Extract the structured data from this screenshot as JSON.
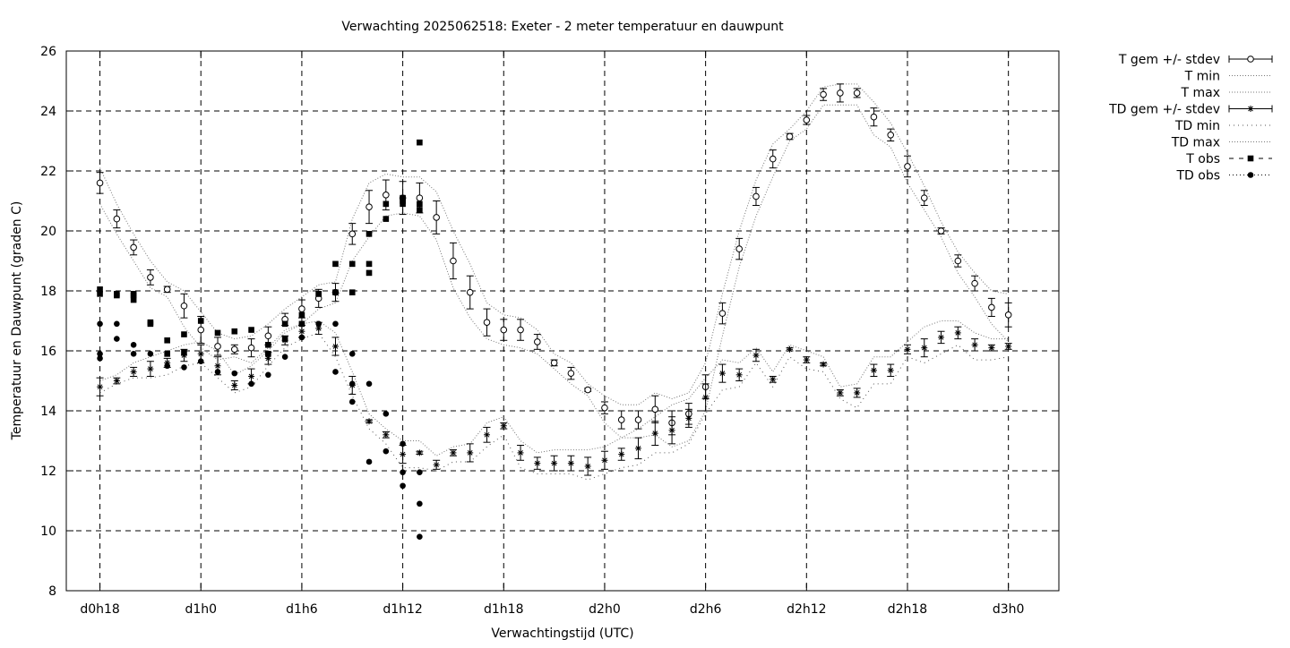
{
  "chart_data": {
    "type": "line",
    "title": "Verwachting 2025062518: Exeter - 2 meter temperatuur en dauwpunt",
    "xlabel": "Verwachtingstijd (UTC)",
    "ylabel": "Temperatuur en Dauwpunt (graden C)",
    "x_unit": "hours since d0h18",
    "xlim": [
      -2,
      57
    ],
    "ylim": [
      8,
      26
    ],
    "yticks": [
      8,
      10,
      12,
      14,
      16,
      18,
      20,
      22,
      24,
      26
    ],
    "xticks": [
      {
        "x": 0,
        "label": "d0h18"
      },
      {
        "x": 6,
        "label": "d1h0"
      },
      {
        "x": 12,
        "label": "d1h6"
      },
      {
        "x": 18,
        "label": "d1h12"
      },
      {
        "x": 24,
        "label": "d1h18"
      },
      {
        "x": 30,
        "label": "d2h0"
      },
      {
        "x": 36,
        "label": "d2h6"
      },
      {
        "x": 42,
        "label": "d2h12"
      },
      {
        "x": 48,
        "label": "d2h18"
      },
      {
        "x": 54,
        "label": "d3h0"
      }
    ],
    "grid": true,
    "legend_position": "outside-top-right",
    "legend": [
      {
        "label": "T gem +/- stdev",
        "style": "errorbar-circle"
      },
      {
        "label": "T min",
        "style": "dotted"
      },
      {
        "label": "T max",
        "style": "dotted"
      },
      {
        "label": "TD gem +/- stdev",
        "style": "errorbar-star"
      },
      {
        "label": "TD min",
        "style": "dotted-sparse"
      },
      {
        "label": "TD max",
        "style": "dotted"
      },
      {
        "label": "T obs",
        "style": "dashed-square"
      },
      {
        "label": "TD obs",
        "style": "dotted-circle"
      }
    ],
    "t_mean": {
      "x": [
        0,
        1,
        2,
        3,
        4,
        5,
        6,
        7,
        8,
        9,
        10,
        11,
        12,
        13,
        14,
        15,
        16,
        17,
        18,
        19,
        20,
        21,
        22,
        23,
        24,
        25,
        26,
        27,
        28,
        29,
        30,
        31,
        32,
        33,
        34,
        35,
        36,
        37,
        38,
        39,
        40,
        41,
        42,
        43,
        44,
        45,
        46,
        47,
        48,
        49,
        50,
        51,
        52,
        53,
        54
      ],
      "y": [
        21.6,
        20.4,
        19.45,
        18.45,
        18.05,
        17.5,
        16.7,
        16.15,
        16.05,
        16.1,
        16.5,
        17.05,
        17.4,
        17.75,
        17.95,
        19.9,
        20.8,
        21.2,
        21.1,
        21.1,
        20.45,
        19.0,
        17.95,
        16.95,
        16.7,
        16.7,
        16.3,
        15.6,
        15.25,
        14.7,
        14.1,
        13.7,
        13.7,
        14.05,
        13.6,
        13.9,
        14.8,
        17.25,
        19.4,
        21.15,
        22.4,
        23.15,
        23.7,
        24.55,
        24.6,
        24.6,
        23.8,
        23.2,
        22.15,
        21.1,
        20.0,
        19.0,
        18.25,
        17.45,
        17.2
      ],
      "sd": [
        0.35,
        0.3,
        0.25,
        0.25,
        0.1,
        0.4,
        0.45,
        0.3,
        0.15,
        0.3,
        0.3,
        0.2,
        0.3,
        0.3,
        0.3,
        0.35,
        0.55,
        0.5,
        0.55,
        0.5,
        0.55,
        0.6,
        0.55,
        0.45,
        0.35,
        0.35,
        0.25,
        0.1,
        0.2,
        0.05,
        0.2,
        0.3,
        0.3,
        0.45,
        0.4,
        0.35,
        0.4,
        0.35,
        0.35,
        0.3,
        0.3,
        0.1,
        0.15,
        0.2,
        0.3,
        0.15,
        0.3,
        0.2,
        0.35,
        0.25,
        0.1,
        0.2,
        0.25,
        0.3,
        0.4
      ]
    },
    "t_min": {
      "x": [
        0,
        1,
        2,
        3,
        4,
        5,
        6,
        7,
        8,
        9,
        10,
        11,
        12,
        13,
        14,
        15,
        16,
        17,
        18,
        19,
        20,
        21,
        22,
        23,
        24,
        25,
        26,
        27,
        28,
        29,
        30,
        31,
        32,
        33,
        34,
        35,
        36,
        37,
        38,
        39,
        40,
        41,
        42,
        43,
        44,
        45,
        46,
        47,
        48,
        49,
        50,
        51,
        52,
        53,
        54
      ],
      "y": [
        20.9,
        19.9,
        19.0,
        18.1,
        17.8,
        16.8,
        16.1,
        15.7,
        15.8,
        15.6,
        16.1,
        16.7,
        16.9,
        17.4,
        17.6,
        19.0,
        19.8,
        20.5,
        20.6,
        20.5,
        19.7,
        18.1,
        17.1,
        16.4,
        16.2,
        16.1,
        15.9,
        15.4,
        14.9,
        14.5,
        13.6,
        13.1,
        13.1,
        13.2,
        12.8,
        13.0,
        14.0,
        16.5,
        18.8,
        20.5,
        21.8,
        23.0,
        23.4,
        24.2,
        24.2,
        24.2,
        23.2,
        22.8,
        21.6,
        20.7,
        19.8,
        18.6,
        17.8,
        16.9,
        16.3
      ]
    },
    "t_max": {
      "x": [
        0,
        1,
        2,
        3,
        4,
        5,
        6,
        7,
        8,
        9,
        10,
        11,
        12,
        13,
        14,
        15,
        16,
        17,
        18,
        19,
        20,
        21,
        22,
        23,
        24,
        25,
        26,
        27,
        28,
        29,
        30,
        31,
        32,
        33,
        34,
        35,
        36,
        37,
        38,
        39,
        40,
        41,
        42,
        43,
        44,
        45,
        46,
        47,
        48,
        49,
        50,
        51,
        52,
        53,
        54
      ],
      "y": [
        22.1,
        20.9,
        19.9,
        19.0,
        18.3,
        18.0,
        17.3,
        16.6,
        16.4,
        16.5,
        16.9,
        17.4,
        17.8,
        18.2,
        18.3,
        20.4,
        21.6,
        21.9,
        21.8,
        21.8,
        21.3,
        20.0,
        18.9,
        17.6,
        17.2,
        17.1,
        16.7,
        15.9,
        15.6,
        14.9,
        14.5,
        14.2,
        14.2,
        14.6,
        14.4,
        14.6,
        15.6,
        17.9,
        20.0,
        21.7,
        22.9,
        23.4,
        24.0,
        24.8,
        24.9,
        24.9,
        24.3,
        23.6,
        22.6,
        21.5,
        20.3,
        19.3,
        18.6,
        18.0,
        17.9
      ]
    },
    "td_mean": {
      "x": [
        0,
        1,
        2,
        3,
        4,
        5,
        6,
        7,
        8,
        9,
        10,
        11,
        12,
        13,
        14,
        15,
        16,
        17,
        18,
        19,
        20,
        21,
        22,
        23,
        24,
        25,
        26,
        27,
        28,
        29,
        30,
        31,
        32,
        33,
        34,
        35,
        36,
        37,
        38,
        39,
        40,
        41,
        42,
        43,
        44,
        45,
        46,
        47,
        48,
        49,
        50,
        51,
        52,
        53,
        54
      ],
      "y": [
        14.8,
        15.0,
        15.3,
        15.4,
        15.6,
        15.85,
        15.9,
        15.5,
        14.85,
        15.15,
        15.75,
        16.35,
        16.65,
        16.75,
        16.15,
        14.85,
        13.65,
        13.2,
        12.55,
        12.6,
        12.2,
        12.6,
        12.6,
        13.2,
        13.5,
        12.6,
        12.25,
        12.25,
        12.25,
        12.15,
        12.35,
        12.55,
        12.75,
        13.25,
        13.35,
        13.75,
        14.45,
        15.25,
        15.2,
        15.85,
        15.05,
        16.05,
        15.7,
        15.55,
        14.6,
        14.6,
        15.35,
        15.35,
        16.05,
        16.1,
        16.45,
        16.6,
        16.2,
        16.1,
        16.15
      ]
    },
    "td_min": {
      "x": [
        0,
        1,
        2,
        3,
        4,
        5,
        6,
        7,
        8,
        9,
        10,
        11,
        12,
        13,
        14,
        15,
        16,
        17,
        18,
        19,
        20,
        21,
        22,
        23,
        24,
        25,
        26,
        27,
        28,
        29,
        30,
        31,
        32,
        33,
        34,
        35,
        36,
        37,
        38,
        39,
        40,
        41,
        42,
        43,
        44,
        45,
        46,
        47,
        48,
        49,
        50,
        51,
        52,
        53,
        54
      ],
      "y": [
        14.6,
        14.9,
        15.1,
        15.1,
        15.2,
        15.5,
        15.6,
        15.1,
        14.6,
        14.8,
        15.5,
        16.1,
        16.4,
        16.6,
        15.8,
        14.5,
        13.4,
        12.9,
        12.1,
        12.1,
        12.0,
        12.3,
        12.3,
        12.8,
        13.2,
        12.1,
        11.9,
        11.9,
        11.9,
        11.7,
        11.9,
        12.1,
        12.2,
        12.6,
        12.6,
        12.9,
        13.9,
        14.7,
        14.8,
        15.6,
        14.8,
        15.8,
        15.4,
        15.3,
        14.4,
        14.1,
        14.9,
        14.9,
        15.8,
        15.6,
        15.9,
        16.2,
        15.7,
        15.7,
        15.8
      ]
    },
    "td_max": {
      "x": [
        0,
        1,
        2,
        3,
        4,
        5,
        6,
        7,
        8,
        9,
        10,
        11,
        12,
        13,
        14,
        15,
        16,
        17,
        18,
        19,
        20,
        21,
        22,
        23,
        24,
        25,
        26,
        27,
        28,
        29,
        30,
        31,
        32,
        33,
        34,
        35,
        36,
        37,
        38,
        39,
        40,
        41,
        42,
        43,
        44,
        45,
        46,
        47,
        48,
        49,
        50,
        51,
        52,
        53,
        54
      ],
      "y": [
        15.0,
        15.2,
        15.6,
        15.8,
        16.0,
        16.2,
        16.3,
        16.0,
        15.2,
        15.5,
        16.0,
        16.6,
        16.9,
        17.0,
        16.6,
        15.3,
        13.9,
        13.4,
        13.0,
        13.0,
        12.5,
        12.8,
        12.9,
        13.6,
        13.8,
        13.0,
        12.6,
        12.7,
        12.7,
        12.7,
        12.8,
        13.1,
        13.4,
        13.8,
        14.2,
        14.4,
        15.1,
        15.7,
        15.6,
        16.1,
        15.3,
        16.2,
        16.0,
        15.8,
        14.8,
        14.9,
        15.8,
        15.8,
        16.3,
        16.8,
        17.0,
        17.0,
        16.6,
        16.4,
        16.4
      ]
    },
    "td_sd": [
      0.3,
      0.1,
      0.15,
      0.25,
      0.15,
      0.2,
      0.3,
      0.3,
      0.15,
      0.25,
      0.2,
      0.15,
      0.2,
      0.2,
      0.3,
      0.3,
      0.05,
      0.1,
      0.3,
      0.05,
      0.15,
      0.1,
      0.3,
      0.25,
      0.1,
      0.25,
      0.2,
      0.25,
      0.25,
      0.3,
      0.3,
      0.2,
      0.35,
      0.4,
      0.45,
      0.3,
      0.45,
      0.3,
      0.2,
      0.2,
      0.1,
      0.05,
      0.1,
      0.05,
      0.1,
      0.15,
      0.2,
      0.2,
      0.15,
      0.3,
      0.2,
      0.2,
      0.2,
      0.1,
      0.1
    ],
    "t_obs": {
      "x": [
        0,
        0,
        1,
        1,
        2,
        2,
        2,
        3,
        3,
        4,
        4,
        5,
        5,
        6,
        7,
        8,
        9,
        10,
        10,
        11,
        11,
        12,
        12,
        13,
        13,
        14,
        14,
        15,
        15,
        16,
        16,
        16,
        17,
        17,
        18,
        18,
        18,
        19,
        19,
        19
      ],
      "y": [
        17.9,
        18.05,
        17.85,
        17.9,
        17.7,
        17.85,
        17.9,
        16.9,
        16.95,
        16.35,
        15.9,
        16.55,
        15.95,
        17.0,
        16.6,
        16.65,
        16.7,
        16.2,
        15.9,
        16.9,
        16.4,
        17.2,
        16.9,
        17.9,
        17.9,
        18.9,
        17.95,
        18.9,
        17.95,
        19.9,
        18.9,
        18.6,
        20.4,
        20.9,
        20.9,
        21.0,
        21.1,
        20.7,
        20.9,
        22.95
      ]
    },
    "td_obs": {
      "x": [
        0,
        0,
        0,
        1,
        1,
        2,
        2,
        3,
        4,
        5,
        6,
        7,
        8,
        9,
        10,
        10,
        11,
        12,
        12,
        13,
        14,
        14,
        15,
        15,
        15,
        16,
        16,
        17,
        17,
        18,
        18,
        18,
        19,
        19,
        19
      ],
      "y": [
        16.9,
        15.9,
        15.75,
        16.9,
        16.4,
        16.2,
        15.9,
        15.9,
        15.5,
        15.45,
        15.65,
        15.3,
        15.25,
        14.9,
        15.2,
        15.9,
        15.8,
        16.45,
        16.9,
        16.9,
        16.9,
        15.3,
        15.9,
        14.9,
        14.3,
        14.9,
        12.3,
        13.9,
        12.65,
        12.9,
        11.95,
        11.5,
        11.95,
        10.9,
        9.8
      ]
    }
  }
}
